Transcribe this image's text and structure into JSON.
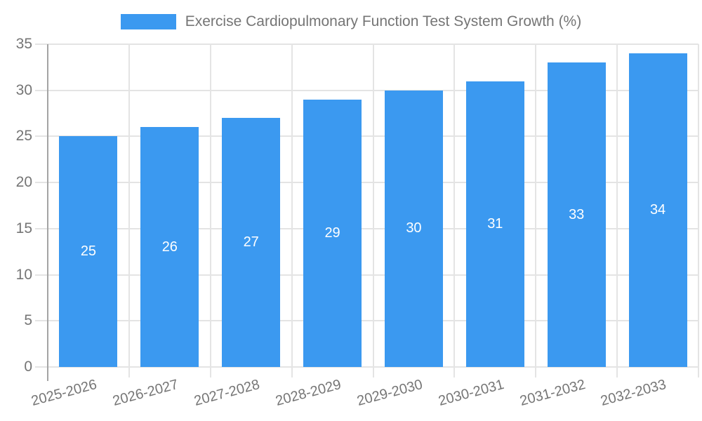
{
  "chart_data": {
    "type": "bar",
    "title": "Exercise Cardiopulmonary Function Test System Growth (%)",
    "categories": [
      "2025-2026",
      "2026-2027",
      "2027-2028",
      "2028-2029",
      "2029-2030",
      "2030-2031",
      "2031-2032",
      "2032-2033"
    ],
    "values": [
      25,
      26,
      27,
      29,
      30,
      31,
      33,
      34
    ],
    "xlabel": "",
    "ylabel": "",
    "ylim": [
      0,
      35
    ],
    "yticks": [
      0,
      5,
      10,
      15,
      20,
      25,
      30,
      35
    ],
    "grid": true,
    "legend_position": "top",
    "bar_value_labels": "inside-center",
    "colors": {
      "bar": "#3b99f0",
      "bar_label": "#ffffff",
      "grid": "#e4e4e4",
      "axis": "#a4a4a4",
      "text": "#757575",
      "background": "#ffffff"
    }
  }
}
